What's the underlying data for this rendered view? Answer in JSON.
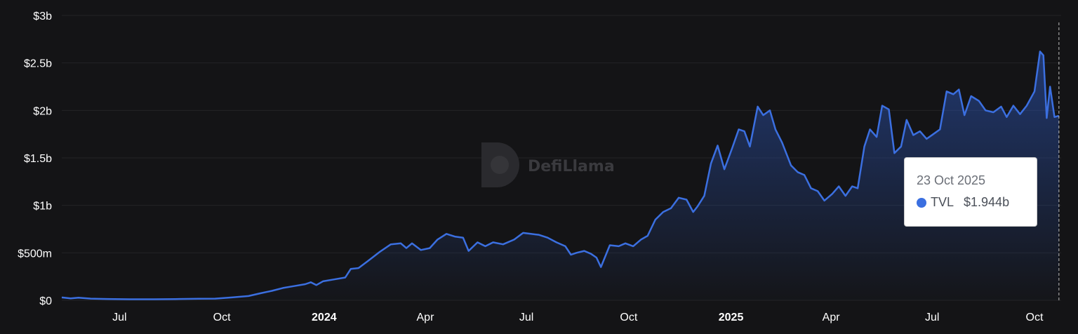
{
  "chart_data": {
    "type": "area",
    "series": [
      {
        "name": "TVL",
        "points": [
          [
            "2023-05-10",
            0.03
          ],
          [
            "2023-05-18",
            0.02
          ],
          [
            "2023-05-25",
            0.028
          ],
          [
            "2023-06-05",
            0.018
          ],
          [
            "2023-06-20",
            0.014
          ],
          [
            "2023-07-10",
            0.011
          ],
          [
            "2023-08-01",
            0.011
          ],
          [
            "2023-08-20",
            0.013
          ],
          [
            "2023-09-10",
            0.016
          ],
          [
            "2023-09-25",
            0.018
          ],
          [
            "2023-10-10",
            0.03
          ],
          [
            "2023-10-25",
            0.045
          ],
          [
            "2023-11-05",
            0.075
          ],
          [
            "2023-11-15",
            0.1
          ],
          [
            "2023-11-25",
            0.13
          ],
          [
            "2023-12-05",
            0.15
          ],
          [
            "2023-12-15",
            0.17
          ],
          [
            "2023-12-20",
            0.19
          ],
          [
            "2023-12-25",
            0.16
          ],
          [
            "2023-12-31",
            0.2
          ],
          [
            "2024-01-10",
            0.22
          ],
          [
            "2024-01-20",
            0.24
          ],
          [
            "2024-01-25",
            0.33
          ],
          [
            "2024-02-01",
            0.34
          ],
          [
            "2024-02-10",
            0.42
          ],
          [
            "2024-02-20",
            0.51
          ],
          [
            "2024-03-01",
            0.59
          ],
          [
            "2024-03-10",
            0.6
          ],
          [
            "2024-03-15",
            0.55
          ],
          [
            "2024-03-20",
            0.6
          ],
          [
            "2024-03-28",
            0.53
          ],
          [
            "2024-04-05",
            0.55
          ],
          [
            "2024-04-12",
            0.64
          ],
          [
            "2024-04-20",
            0.7
          ],
          [
            "2024-04-28",
            0.67
          ],
          [
            "2024-05-05",
            0.66
          ],
          [
            "2024-05-10",
            0.52
          ],
          [
            "2024-05-18",
            0.61
          ],
          [
            "2024-05-25",
            0.57
          ],
          [
            "2024-06-01",
            0.61
          ],
          [
            "2024-06-10",
            0.59
          ],
          [
            "2024-06-20",
            0.64
          ],
          [
            "2024-06-28",
            0.71
          ],
          [
            "2024-07-05",
            0.7
          ],
          [
            "2024-07-12",
            0.69
          ],
          [
            "2024-07-20",
            0.66
          ],
          [
            "2024-07-28",
            0.61
          ],
          [
            "2024-08-05",
            0.57
          ],
          [
            "2024-08-10",
            0.48
          ],
          [
            "2024-08-15",
            0.5
          ],
          [
            "2024-08-22",
            0.52
          ],
          [
            "2024-08-28",
            0.49
          ],
          [
            "2024-09-02",
            0.45
          ],
          [
            "2024-09-06",
            0.35
          ],
          [
            "2024-09-14",
            0.58
          ],
          [
            "2024-09-22",
            0.57
          ],
          [
            "2024-09-28",
            0.6
          ],
          [
            "2024-10-05",
            0.57
          ],
          [
            "2024-10-12",
            0.64
          ],
          [
            "2024-10-18",
            0.68
          ],
          [
            "2024-10-25",
            0.85
          ],
          [
            "2024-11-01",
            0.93
          ],
          [
            "2024-11-08",
            0.97
          ],
          [
            "2024-11-15",
            1.08
          ],
          [
            "2024-11-22",
            1.06
          ],
          [
            "2024-11-28",
            0.93
          ],
          [
            "2024-12-02",
            0.99
          ],
          [
            "2024-12-08",
            1.1
          ],
          [
            "2024-12-14",
            1.44
          ],
          [
            "2024-12-20",
            1.63
          ],
          [
            "2024-12-26",
            1.38
          ],
          [
            "2025-01-02",
            1.6
          ],
          [
            "2025-01-08",
            1.8
          ],
          [
            "2025-01-13",
            1.78
          ],
          [
            "2025-01-18",
            1.62
          ],
          [
            "2025-01-25",
            2.04
          ],
          [
            "2025-01-30",
            1.95
          ],
          [
            "2025-02-05",
            2.0
          ],
          [
            "2025-02-10",
            1.8
          ],
          [
            "2025-02-16",
            1.66
          ],
          [
            "2025-02-24",
            1.42
          ],
          [
            "2025-03-02",
            1.35
          ],
          [
            "2025-03-08",
            1.32
          ],
          [
            "2025-03-14",
            1.18
          ],
          [
            "2025-03-20",
            1.15
          ],
          [
            "2025-03-26",
            1.05
          ],
          [
            "2025-04-02",
            1.12
          ],
          [
            "2025-04-08",
            1.2
          ],
          [
            "2025-04-14",
            1.1
          ],
          [
            "2025-04-20",
            1.2
          ],
          [
            "2025-04-25",
            1.18
          ],
          [
            "2025-05-01",
            1.62
          ],
          [
            "2025-05-06",
            1.8
          ],
          [
            "2025-05-12",
            1.72
          ],
          [
            "2025-05-17",
            2.05
          ],
          [
            "2025-05-23",
            2.01
          ],
          [
            "2025-05-28",
            1.55
          ],
          [
            "2025-06-03",
            1.62
          ],
          [
            "2025-06-08",
            1.9
          ],
          [
            "2025-06-14",
            1.74
          ],
          [
            "2025-06-20",
            1.78
          ],
          [
            "2025-06-26",
            1.7
          ],
          [
            "2025-07-02",
            1.75
          ],
          [
            "2025-07-08",
            1.8
          ],
          [
            "2025-07-14",
            2.2
          ],
          [
            "2025-07-20",
            2.17
          ],
          [
            "2025-07-25",
            2.22
          ],
          [
            "2025-07-30",
            1.95
          ],
          [
            "2025-08-05",
            2.15
          ],
          [
            "2025-08-12",
            2.1
          ],
          [
            "2025-08-18",
            2.0
          ],
          [
            "2025-08-25",
            1.98
          ],
          [
            "2025-09-01",
            2.04
          ],
          [
            "2025-09-06",
            1.93
          ],
          [
            "2025-09-12",
            2.05
          ],
          [
            "2025-09-18",
            1.96
          ],
          [
            "2025-09-24",
            2.05
          ],
          [
            "2025-10-01",
            2.2
          ],
          [
            "2025-10-06",
            2.62
          ],
          [
            "2025-10-09",
            2.58
          ],
          [
            "2025-10-12",
            1.92
          ],
          [
            "2025-10-15",
            2.25
          ],
          [
            "2025-10-19",
            1.93
          ],
          [
            "2025-10-23",
            1.944
          ]
        ]
      }
    ],
    "x_ticks": [
      {
        "date": "2023-07-01",
        "label": "Jul",
        "bold": false
      },
      {
        "date": "2023-10-01",
        "label": "Oct",
        "bold": false
      },
      {
        "date": "2024-01-01",
        "label": "2024",
        "bold": true
      },
      {
        "date": "2024-04-01",
        "label": "Apr",
        "bold": false
      },
      {
        "date": "2024-07-01",
        "label": "Jul",
        "bold": false
      },
      {
        "date": "2024-10-01",
        "label": "Oct",
        "bold": false
      },
      {
        "date": "2025-01-01",
        "label": "2025",
        "bold": true
      },
      {
        "date": "2025-04-01",
        "label": "Apr",
        "bold": false
      },
      {
        "date": "2025-07-01",
        "label": "Jul",
        "bold": false
      },
      {
        "date": "2025-10-01",
        "label": "Oct",
        "bold": false
      }
    ],
    "y_ticks": [
      {
        "value": 0,
        "label": "$0"
      },
      {
        "value": 0.5,
        "label": "$500m"
      },
      {
        "value": 1,
        "label": "$1b"
      },
      {
        "value": 1.5,
        "label": "$1.5b"
      },
      {
        "value": 2,
        "label": "$2b"
      },
      {
        "value": 2.5,
        "label": "$2.5b"
      },
      {
        "value": 3,
        "label": "$3b"
      }
    ],
    "ylim": [
      0,
      3
    ],
    "xlim": [
      "2023-05-10",
      "2025-10-25"
    ],
    "grid": true,
    "line_color": "#3b6fe0",
    "watermark": "DefiLlama",
    "tooltip": {
      "date": "23 Oct 2025",
      "series_name": "TVL",
      "value": "$1.944b",
      "dot_color": "#3b6fe0"
    }
  }
}
